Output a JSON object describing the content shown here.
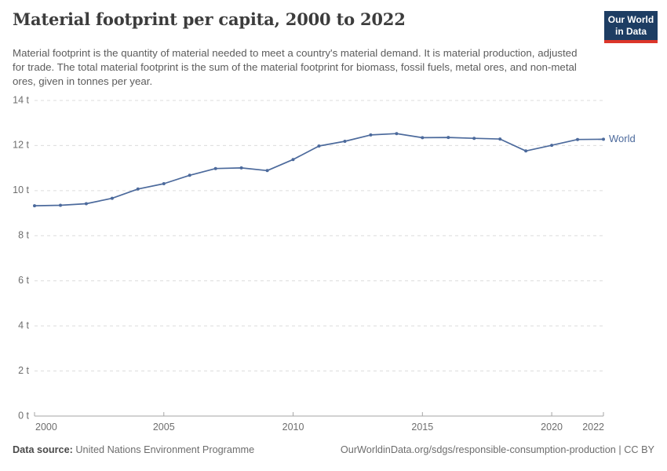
{
  "header": {
    "title": "Material footprint per capita, 2000 to 2022",
    "subtitle": "Material footprint is the quantity of material needed to meet a country's material demand. It is material production, adjusted for trade. The total material footprint is the sum of the material footprint for biomass, fossil fuels, metal ores, and non-metal ores, given in tonnes per year.",
    "logo": {
      "line1": "Our World",
      "line2": "in Data",
      "bg": "#1d3d63",
      "accent": "#dc362a"
    }
  },
  "chart_data": {
    "type": "line",
    "title": "Material footprint per capita, 2000 to 2022",
    "x": [
      2000,
      2001,
      2002,
      2003,
      2004,
      2005,
      2006,
      2007,
      2008,
      2009,
      2010,
      2011,
      2012,
      2013,
      2014,
      2015,
      2016,
      2017,
      2018,
      2019,
      2020,
      2021,
      2022
    ],
    "series": [
      {
        "name": "World",
        "color": "#4c6a9c",
        "values": [
          9.33,
          9.35,
          9.42,
          9.66,
          10.07,
          10.31,
          10.68,
          10.98,
          11.01,
          10.89,
          11.38,
          11.98,
          12.19,
          12.47,
          12.53,
          12.35,
          12.36,
          12.32,
          12.29,
          11.76,
          12.01,
          12.27,
          12.28
        ]
      }
    ],
    "xlabel": "",
    "ylabel": "",
    "xlim": [
      2000,
      2022
    ],
    "ylim": [
      0,
      14
    ],
    "xticks": [
      2000,
      2005,
      2010,
      2015,
      2020,
      2022
    ],
    "yticks": [
      0,
      2,
      4,
      6,
      8,
      10,
      12,
      14
    ],
    "ytick_suffix": " t",
    "grid": "horizontal-dashed",
    "legend": "end-of-line-label"
  },
  "colors": {
    "grid": "#dcdcdc",
    "axis": "#a5a5a5",
    "tick_label": "#6e6e6e"
  },
  "footer": {
    "datasource_label": "Data source:",
    "datasource_value": " United Nations Environment Programme",
    "url": "OurWorldinData.org/sdgs/responsible-consumption-production",
    "separator": " | ",
    "license": "CC BY"
  }
}
